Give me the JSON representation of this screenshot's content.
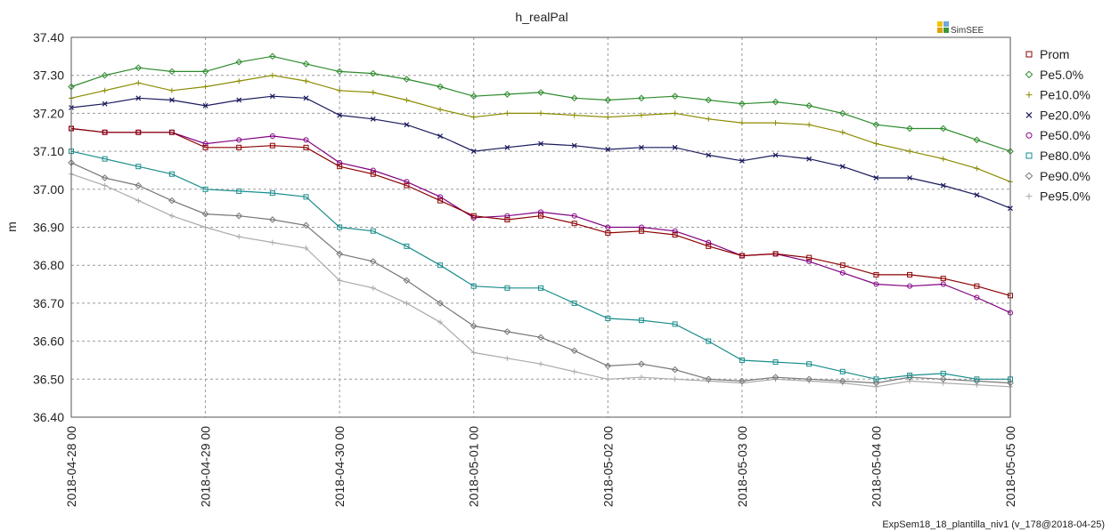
{
  "chart_data": {
    "type": "line",
    "title": "h_realPal",
    "xlabel": "",
    "ylabel": "m",
    "ylim": [
      36.4,
      37.4
    ],
    "y_ticks": [
      "37.40",
      "37.30",
      "37.20",
      "37.10",
      "37.00",
      "36.90",
      "36.80",
      "36.70",
      "36.60",
      "36.50",
      "36.40"
    ],
    "x_ticks": [
      "2018-04-28 00",
      "2018-04-29 00",
      "2018-04-30 00",
      "2018-05-01 00",
      "2018-05-02 00",
      "2018-05-03 00",
      "2018-05-04 00",
      "2018-05-05 00"
    ],
    "x_range_days": [
      0,
      7
    ],
    "grid": true,
    "legend_position": "right",
    "series": [
      {
        "name": "Prom",
        "color": "#8b0000",
        "marker": "square",
        "x": [
          0,
          0.25,
          0.5,
          0.75,
          1,
          1.25,
          1.5,
          1.75,
          2,
          2.25,
          2.5,
          2.75,
          3,
          3.25,
          3.5,
          3.75,
          4,
          4.25,
          4.5,
          4.75,
          5,
          5.25,
          5.5,
          5.75,
          6,
          6.25,
          6.5,
          6.75,
          7
        ],
        "y": [
          37.16,
          37.15,
          37.15,
          37.15,
          37.11,
          37.11,
          37.115,
          37.11,
          37.06,
          37.04,
          37.01,
          36.97,
          36.93,
          36.92,
          36.93,
          36.91,
          36.885,
          36.89,
          36.88,
          36.85,
          36.825,
          36.83,
          36.82,
          36.8,
          36.775,
          36.775,
          36.765,
          36.745,
          36.72
        ]
      },
      {
        "name": "Pe5.0%",
        "color": "#2e8b2e",
        "marker": "diamond",
        "x": [
          0,
          0.25,
          0.5,
          0.75,
          1,
          1.25,
          1.5,
          1.75,
          2,
          2.25,
          2.5,
          2.75,
          3,
          3.25,
          3.5,
          3.75,
          4,
          4.25,
          4.5,
          4.75,
          5,
          5.25,
          5.5,
          5.75,
          6,
          6.25,
          6.5,
          6.75,
          7
        ],
        "y": [
          37.27,
          37.3,
          37.32,
          37.31,
          37.31,
          37.335,
          37.35,
          37.33,
          37.31,
          37.305,
          37.29,
          37.27,
          37.245,
          37.25,
          37.255,
          37.24,
          37.235,
          37.24,
          37.245,
          37.235,
          37.225,
          37.23,
          37.22,
          37.2,
          37.17,
          37.16,
          37.16,
          37.13,
          37.1
        ]
      },
      {
        "name": "Pe10.0%",
        "color": "#8b8b00",
        "marker": "plus",
        "x": [
          0,
          0.25,
          0.5,
          0.75,
          1,
          1.25,
          1.5,
          1.75,
          2,
          2.25,
          2.5,
          2.75,
          3,
          3.25,
          3.5,
          3.75,
          4,
          4.25,
          4.5,
          4.75,
          5,
          5.25,
          5.5,
          5.75,
          6,
          6.25,
          6.5,
          6.75,
          7
        ],
        "y": [
          37.24,
          37.26,
          37.28,
          37.26,
          37.27,
          37.285,
          37.3,
          37.285,
          37.26,
          37.255,
          37.235,
          37.21,
          37.19,
          37.2,
          37.2,
          37.195,
          37.19,
          37.195,
          37.2,
          37.185,
          37.175,
          37.175,
          37.17,
          37.15,
          37.12,
          37.1,
          37.08,
          37.055,
          37.02
        ]
      },
      {
        "name": "Pe20.0%",
        "color": "#1a1a5e",
        "marker": "x",
        "x": [
          0,
          0.25,
          0.5,
          0.75,
          1,
          1.25,
          1.5,
          1.75,
          2,
          2.25,
          2.5,
          2.75,
          3,
          3.25,
          3.5,
          3.75,
          4,
          4.25,
          4.5,
          4.75,
          5,
          5.25,
          5.5,
          5.75,
          6,
          6.25,
          6.5,
          6.75,
          7
        ],
        "y": [
          37.215,
          37.225,
          37.24,
          37.235,
          37.22,
          37.235,
          37.245,
          37.24,
          37.195,
          37.185,
          37.17,
          37.14,
          37.1,
          37.11,
          37.12,
          37.115,
          37.105,
          37.11,
          37.11,
          37.09,
          37.075,
          37.09,
          37.08,
          37.06,
          37.03,
          37.03,
          37.01,
          36.985,
          36.95
        ]
      },
      {
        "name": "Pe50.0%",
        "color": "#800080",
        "marker": "circle",
        "x": [
          0,
          0.25,
          0.5,
          0.75,
          1,
          1.25,
          1.5,
          1.75,
          2,
          2.25,
          2.5,
          2.75,
          3,
          3.25,
          3.5,
          3.75,
          4,
          4.25,
          4.5,
          4.75,
          5,
          5.25,
          5.5,
          5.75,
          6,
          6.25,
          6.5,
          6.75,
          7
        ],
        "y": [
          37.16,
          37.15,
          37.15,
          37.15,
          37.12,
          37.13,
          37.14,
          37.13,
          37.07,
          37.05,
          37.02,
          36.98,
          36.925,
          36.93,
          36.94,
          36.93,
          36.9,
          36.9,
          36.89,
          36.86,
          36.825,
          36.83,
          36.81,
          36.78,
          36.75,
          36.745,
          36.75,
          36.715,
          36.675
        ]
      },
      {
        "name": "Pe80.0%",
        "color": "#1a8c8c",
        "marker": "square",
        "x": [
          0,
          0.25,
          0.5,
          0.75,
          1,
          1.25,
          1.5,
          1.75,
          2,
          2.25,
          2.5,
          2.75,
          3,
          3.25,
          3.5,
          3.75,
          4,
          4.25,
          4.5,
          4.75,
          5,
          5.25,
          5.5,
          5.75,
          6,
          6.25,
          6.5,
          6.75,
          7
        ],
        "y": [
          37.1,
          37.08,
          37.06,
          37.04,
          37,
          36.995,
          36.99,
          36.98,
          36.9,
          36.89,
          36.85,
          36.8,
          36.745,
          36.74,
          36.74,
          36.7,
          36.66,
          36.655,
          36.645,
          36.6,
          36.55,
          36.545,
          36.54,
          36.52,
          36.5,
          36.51,
          36.515,
          36.5,
          36.5
        ]
      },
      {
        "name": "Pe90.0%",
        "color": "#777777",
        "marker": "diamond",
        "x": [
          0,
          0.25,
          0.5,
          0.75,
          1,
          1.25,
          1.5,
          1.75,
          2,
          2.25,
          2.5,
          2.75,
          3,
          3.25,
          3.5,
          3.75,
          4,
          4.25,
          4.5,
          4.75,
          5,
          5.25,
          5.5,
          5.75,
          6,
          6.25,
          6.5,
          6.75,
          7
        ],
        "y": [
          37.07,
          37.03,
          37.01,
          36.97,
          36.935,
          36.93,
          36.92,
          36.905,
          36.83,
          36.81,
          36.76,
          36.7,
          36.64,
          36.625,
          36.61,
          36.575,
          36.535,
          36.54,
          36.525,
          36.5,
          36.495,
          36.505,
          36.5,
          36.495,
          36.49,
          36.505,
          36.5,
          36.495,
          36.49
        ]
      },
      {
        "name": "Pe95.0%",
        "color": "#aaaaaa",
        "marker": "plus",
        "x": [
          0,
          0.25,
          0.5,
          0.75,
          1,
          1.25,
          1.5,
          1.75,
          2,
          2.25,
          2.5,
          2.75,
          3,
          3.25,
          3.5,
          3.75,
          4,
          4.25,
          4.5,
          4.75,
          5,
          5.25,
          5.5,
          5.75,
          6,
          6.25,
          6.5,
          6.75,
          7
        ],
        "y": [
          37.04,
          37.01,
          36.97,
          36.93,
          36.9,
          36.875,
          36.86,
          36.845,
          36.76,
          36.74,
          36.7,
          36.65,
          36.57,
          36.555,
          36.54,
          36.52,
          36.5,
          36.505,
          36.5,
          36.495,
          36.49,
          36.5,
          36.495,
          36.49,
          36.48,
          36.495,
          36.49,
          36.485,
          36.48
        ]
      }
    ]
  },
  "logo_text": "SimSEE",
  "footer_text": "ExpSem18_18_plantilla_niv1 (v_178@2018-04-25)"
}
